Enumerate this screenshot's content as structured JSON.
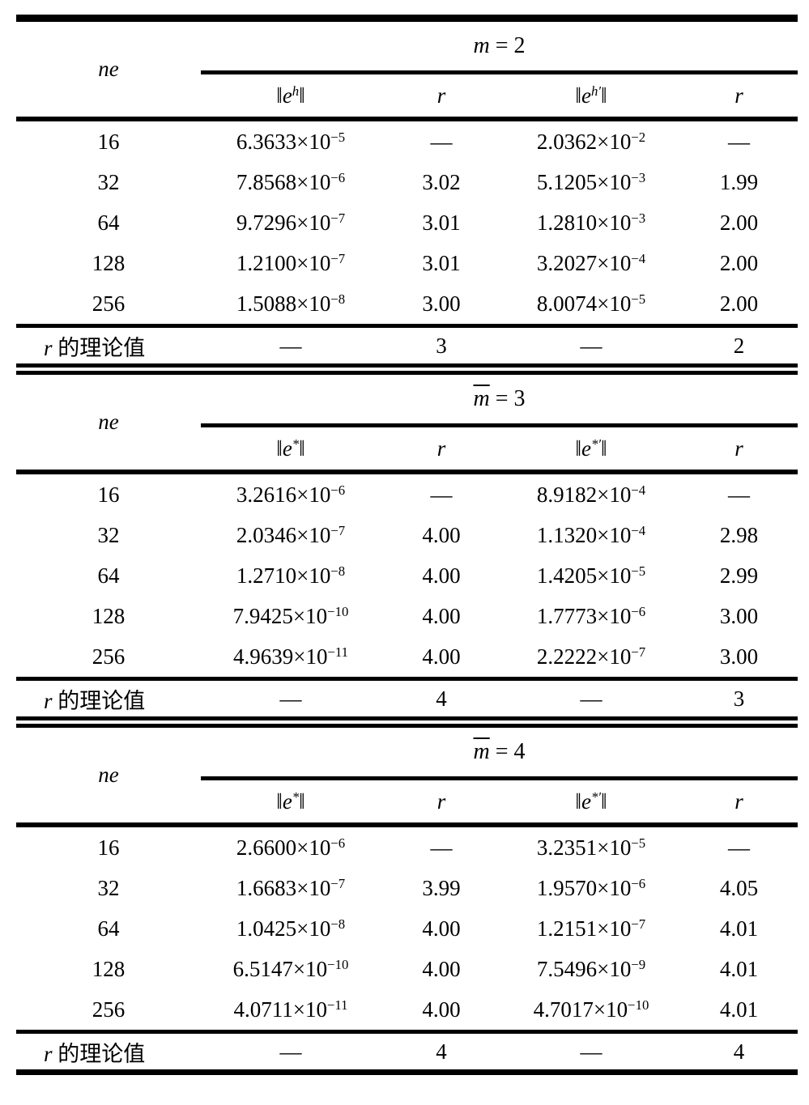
{
  "accent_colors": {
    "text": "#000000",
    "background": "#ffffff",
    "rule": "#000000"
  },
  "chart_data": {
    "type": "table",
    "description_visible_structure": "three stacked convergence tables",
    "sections": [
      {
        "group": {
          "var": "m",
          "bar": false,
          "rhs": "2"
        },
        "ne_label": "ne",
        "col_headers": [
          {
            "norm": "e",
            "sup": "h"
          },
          {
            "plain": "r"
          },
          {
            "norm": "e",
            "sup": "h′"
          },
          {
            "plain": "r"
          }
        ],
        "rows": [
          {
            "ne": "16",
            "cells": [
              {
                "m": "6.3633",
                "e": "−5"
              },
              "—",
              {
                "m": "2.0362",
                "e": "−2"
              },
              "—"
            ]
          },
          {
            "ne": "32",
            "cells": [
              {
                "m": "7.8568",
                "e": "−6"
              },
              "3.02",
              {
                "m": "5.1205",
                "e": "−3"
              },
              "1.99"
            ]
          },
          {
            "ne": "64",
            "cells": [
              {
                "m": "9.7296",
                "e": "−7"
              },
              "3.01",
              {
                "m": "1.2810",
                "e": "−3"
              },
              "2.00"
            ]
          },
          {
            "ne": "128",
            "cells": [
              {
                "m": "1.2100",
                "e": "−7"
              },
              "3.01",
              {
                "m": "3.2027",
                "e": "−4"
              },
              "2.00"
            ]
          },
          {
            "ne": "256",
            "cells": [
              {
                "m": "1.5088",
                "e": "−8"
              },
              "3.00",
              {
                "m": "8.0074",
                "e": "−5"
              },
              "2.00"
            ]
          }
        ],
        "theory": {
          "var": "r",
          "text": " 的理论值",
          "cells": [
            "—",
            "3",
            "—",
            "2"
          ]
        }
      },
      {
        "group": {
          "var": "m",
          "bar": true,
          "rhs": "3"
        },
        "ne_label": "ne",
        "col_headers": [
          {
            "norm": "e",
            "sup": "*"
          },
          {
            "plain": "r"
          },
          {
            "norm": "e",
            "sup": "*′"
          },
          {
            "plain": "r"
          }
        ],
        "rows": [
          {
            "ne": "16",
            "cells": [
              {
                "m": "3.2616",
                "e": "−6"
              },
              "—",
              {
                "m": "8.9182",
                "e": "−4"
              },
              "—"
            ]
          },
          {
            "ne": "32",
            "cells": [
              {
                "m": "2.0346",
                "e": "−7"
              },
              "4.00",
              {
                "m": "1.1320",
                "e": "−4"
              },
              "2.98"
            ]
          },
          {
            "ne": "64",
            "cells": [
              {
                "m": "1.2710",
                "e": "−8"
              },
              "4.00",
              {
                "m": "1.4205",
                "e": "−5"
              },
              "2.99"
            ]
          },
          {
            "ne": "128",
            "cells": [
              {
                "m": "7.9425",
                "e": "−10"
              },
              "4.00",
              {
                "m": "1.7773",
                "e": "−6"
              },
              "3.00"
            ]
          },
          {
            "ne": "256",
            "cells": [
              {
                "m": "4.9639",
                "e": "−11"
              },
              "4.00",
              {
                "m": "2.2222",
                "e": "−7"
              },
              "3.00"
            ]
          }
        ],
        "theory": {
          "var": "r",
          "text": " 的理论值",
          "cells": [
            "—",
            "4",
            "—",
            "3"
          ]
        }
      },
      {
        "group": {
          "var": "m",
          "bar": true,
          "rhs": "4"
        },
        "ne_label": "ne",
        "col_headers": [
          {
            "norm": "e",
            "sup": "*"
          },
          {
            "plain": "r"
          },
          {
            "norm": "e",
            "sup": "*′"
          },
          {
            "plain": "r"
          }
        ],
        "rows": [
          {
            "ne": "16",
            "cells": [
              {
                "m": "2.6600",
                "e": "−6"
              },
              "—",
              {
                "m": "3.2351",
                "e": "−5"
              },
              "—"
            ]
          },
          {
            "ne": "32",
            "cells": [
              {
                "m": "1.6683",
                "e": "−7"
              },
              "3.99",
              {
                "m": "1.9570",
                "e": "−6"
              },
              "4.05"
            ]
          },
          {
            "ne": "64",
            "cells": [
              {
                "m": "1.0425",
                "e": "−8"
              },
              "4.00",
              {
                "m": "1.2151",
                "e": "−7"
              },
              "4.01"
            ]
          },
          {
            "ne": "128",
            "cells": [
              {
                "m": "6.5147",
                "e": "−10"
              },
              "4.00",
              {
                "m": "7.5496",
                "e": "−9"
              },
              "4.01"
            ]
          },
          {
            "ne": "256",
            "cells": [
              {
                "m": "4.0711",
                "e": "−11"
              },
              "4.00",
              {
                "m": "4.7017",
                "e": "−10"
              },
              "4.01"
            ]
          }
        ],
        "theory": {
          "var": "r",
          "text": " 的理论值",
          "cells": [
            "—",
            "4",
            "—",
            "4"
          ]
        }
      }
    ]
  }
}
